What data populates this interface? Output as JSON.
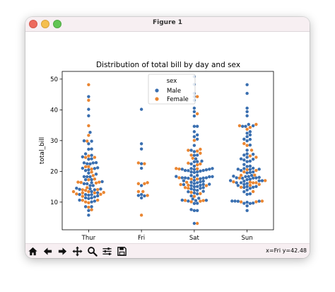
{
  "window": {
    "title": "Figure 1"
  },
  "toolbar": {
    "tools": [
      "home-icon",
      "back-arrow-icon",
      "forward-arrow-icon",
      "pan-icon",
      "zoom-icon",
      "configure-subplots-icon",
      "save-icon"
    ],
    "coords": "x=Fri y=42.48"
  },
  "colors": {
    "male": "#3a6fb0",
    "female": "#ea8632"
  },
  "chart_data": {
    "type": "scatter",
    "style": "swarm",
    "title": "Distribution of total bill by day and sex",
    "xlabel": "day",
    "ylabel": "total_bill",
    "categories": [
      "Thur",
      "Fri",
      "Sat",
      "Sun"
    ],
    "ylim": [
      1,
      52.5
    ],
    "yticks": [
      10,
      20,
      30,
      40,
      50
    ],
    "grid": false,
    "legend": {
      "title": "sex",
      "entries": [
        "Male",
        "Female"
      ],
      "position": "top-center"
    },
    "series": [
      {
        "name": "Male",
        "values": [
          [
            27.2,
            22.76,
            17.29,
            19.44,
            16.66,
            10.07,
            32.68,
            15.98,
            13.03,
            18.28,
            24.71,
            21.16,
            28.97,
            22.49,
            5.75,
            16.32,
            22.75,
            40.17,
            27.28,
            12.03,
            21.01,
            12.46,
            11.35,
            15.38,
            44.3,
            22.42,
            20.92,
            15.36,
            20.49,
            25.21,
            18.24,
            14.31,
            14.0,
            7.25,
            38.07,
            23.95,
            25.71,
            17.31,
            29.93,
            10.65,
            12.43,
            24.08,
            11.69,
            13.42,
            14.26,
            15.95,
            12.48,
            29.8,
            8.52,
            14.52,
            11.38,
            22.82,
            19.08,
            20.27,
            11.17,
            12.26,
            18.26,
            8.51,
            10.33,
            14.15
          ],
          [
            28.97,
            22.49,
            40.17,
            27.28,
            12.03,
            21.01,
            12.46,
            11.35,
            15.38,
            12.16
          ],
          [
            20.65,
            17.92,
            20.29,
            15.77,
            39.42,
            19.82,
            17.81,
            13.37,
            12.69,
            21.7,
            19.65,
            9.55,
            18.35,
            15.06,
            20.69,
            17.78,
            24.06,
            16.31,
            16.93,
            18.69,
            31.27,
            16.04,
            38.01,
            26.41,
            11.24,
            48.27,
            20.29,
            13.81,
            11.02,
            18.29,
            17.59,
            20.08,
            16.45,
            3.07,
            20.23,
            15.01,
            12.02,
            17.07,
            26.86,
            25.28,
            14.73,
            10.51,
            17.92,
            44.3,
            22.42,
            20.92,
            15.36,
            20.49,
            25.21,
            18.24,
            14.31,
            14.0,
            7.25,
            10.59,
            10.63,
            50.81,
            15.81,
            7.25,
            31.85,
            16.82,
            32.9,
            17.89,
            14.48,
            9.6,
            34.63,
            34.65,
            23.33,
            45.35,
            23.17,
            40.55,
            20.69,
            20.9,
            30.46,
            18.15,
            23.1,
            15.69,
            19.81,
            28.44,
            15.48,
            16.58,
            7.56,
            10.34,
            43.11,
            13.0,
            13.51,
            18.71
          ],
          [
            16.99,
            10.34,
            21.01,
            23.68,
            24.59,
            25.29,
            8.77,
            26.88,
            15.04,
            14.78,
            10.27,
            35.26,
            15.42,
            18.43,
            14.83,
            21.58,
            10.33,
            16.29,
            16.97,
            20.65,
            17.92,
            20.29,
            15.77,
            39.42,
            19.82,
            17.81,
            13.37,
            12.69,
            21.7,
            19.65,
            9.55,
            18.35,
            15.06,
            20.69,
            17.78,
            24.06,
            16.31,
            16.93,
            18.69,
            31.27,
            16.04,
            17.46,
            13.94,
            9.68,
            30.4,
            18.29,
            22.23,
            32.4,
            28.55,
            18.04,
            12.54,
            10.29,
            34.81,
            9.94,
            25.56,
            19.49,
            38.07,
            23.95,
            25.71,
            17.31,
            29.93,
            7.25,
            31.85,
            16.82,
            32.9,
            17.89,
            14.48,
            9.6,
            34.63,
            34.65,
            23.33,
            45.35,
            23.17,
            40.55,
            48.17,
            20.69,
            20.9,
            30.46
          ]
        ]
      },
      {
        "name": "Female",
        "values": [
          [
            10.07,
            34.83,
            16.47,
            13.39,
            14.69,
            12.54,
            21.5,
            14.0,
            13.0,
            16.4,
            8.35,
            18.64,
            11.87,
            9.78,
            7.51,
            14.07,
            13.13,
            17.26,
            24.55,
            19.77,
            29.85,
            48.17,
            25.0,
            13.39,
            16.49,
            21.5,
            12.66,
            16.21,
            13.81,
            17.51,
            24.52,
            20.76,
            31.71,
            10.59,
            10.63,
            43.11,
            13.0
          ],
          [
            22.75,
            16.32,
            22.49,
            5.75,
            16.0,
            13.42,
            15.98,
            13.42,
            12.16
          ],
          [
            20.82,
            10.29,
            3.07,
            16.45,
            15.69,
            11.87,
            15.53,
            14.52,
            10.54,
            20.76,
            26.86,
            25.28,
            14.73,
            10.51,
            17.92,
            27.18,
            22.12,
            44.3,
            22.42,
            20.92,
            15.36,
            17.47,
            10.09,
            26.59,
            38.73,
            24.27,
            12.76,
            30.06,
            25.89,
            13.16,
            17.47,
            22.67
          ],
          [
            16.99,
            24.59,
            35.26,
            14.83,
            10.33,
            16.29,
            20.29,
            15.77,
            19.81,
            28.44,
            15.48,
            16.58,
            34.3,
            25.0,
            13.42,
            16.27,
            10.09,
            18.71,
            20.53,
            16.47,
            26.88,
            18.78,
            29.03,
            17.82,
            33.68,
            10.07,
            34.83
          ]
        ]
      }
    ]
  }
}
